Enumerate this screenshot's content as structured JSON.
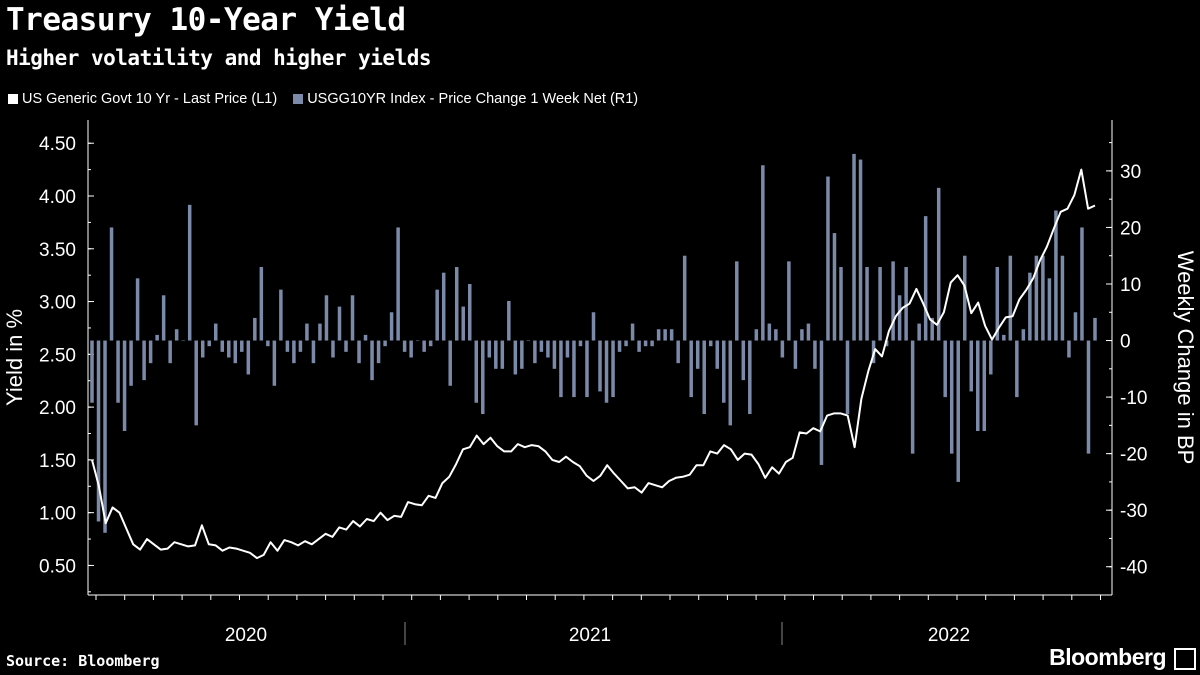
{
  "title": "Treasury 10-Year Yield",
  "subtitle": "Higher volatility and higher yields",
  "source": "Source: Bloomberg",
  "brand": "Bloomberg",
  "colors": {
    "line": "#ffffff",
    "bar": "#7a8aa8",
    "background": "#000000"
  },
  "chart_data": {
    "type": "bar+line",
    "left_axis": {
      "label": "Yield in %",
      "range": [
        0.22,
        4.72
      ],
      "ticks": [
        "0.50",
        "1.00",
        "1.50",
        "2.00",
        "2.50",
        "3.00",
        "3.50",
        "4.00",
        "4.50"
      ]
    },
    "right_axis": {
      "label": "Weekly Change in BP",
      "range": [
        -45,
        39
      ],
      "ticks": [
        "-40",
        "-30",
        "-20",
        "-10",
        "0",
        "10",
        "20",
        "30"
      ]
    },
    "x_axis": {
      "labels": [
        "2020",
        "2021",
        "2022"
      ]
    },
    "series": [
      {
        "name": "US Generic Govt 10 Yr - Last Price (L1)",
        "type": "line",
        "axis": "left",
        "values": [
          1.5,
          1.25,
          0.9,
          1.05,
          1.0,
          0.85,
          0.7,
          0.65,
          0.75,
          0.7,
          0.65,
          0.66,
          0.72,
          0.7,
          0.68,
          0.69,
          0.88,
          0.7,
          0.69,
          0.64,
          0.67,
          0.66,
          0.64,
          0.62,
          0.57,
          0.6,
          0.72,
          0.64,
          0.74,
          0.72,
          0.69,
          0.73,
          0.7,
          0.75,
          0.8,
          0.77,
          0.86,
          0.84,
          0.92,
          0.87,
          0.94,
          0.92,
          1.0,
          0.93,
          0.97,
          0.96,
          1.1,
          1.08,
          1.07,
          1.16,
          1.14,
          1.28,
          1.34,
          1.46,
          1.6,
          1.62,
          1.73,
          1.65,
          1.71,
          1.63,
          1.58,
          1.58,
          1.65,
          1.62,
          1.64,
          1.63,
          1.58,
          1.5,
          1.48,
          1.53,
          1.48,
          1.44,
          1.35,
          1.3,
          1.35,
          1.45,
          1.37,
          1.3,
          1.23,
          1.24,
          1.19,
          1.28,
          1.26,
          1.24,
          1.3,
          1.33,
          1.34,
          1.36,
          1.45,
          1.45,
          1.58,
          1.56,
          1.64,
          1.6,
          1.5,
          1.56,
          1.55,
          1.46,
          1.33,
          1.43,
          1.37,
          1.48,
          1.52,
          1.76,
          1.75,
          1.8,
          1.77,
          1.92,
          1.94,
          1.94,
          1.92,
          1.62,
          2.08,
          2.34,
          2.55,
          2.48,
          2.72,
          2.86,
          2.94,
          2.98,
          3.12,
          2.98,
          2.83,
          2.78,
          2.9,
          3.18,
          3.25,
          3.15,
          2.89,
          2.99,
          2.77,
          2.64,
          2.75,
          2.85,
          2.86,
          3.02,
          3.11,
          3.22,
          3.39,
          3.52,
          3.69,
          3.85,
          3.88,
          4.01,
          4.25,
          3.88,
          3.91
        ]
      },
      {
        "name": "USGG10YR Index - Price Change 1 Week Net (R1)",
        "type": "bar",
        "axis": "right",
        "values": [
          -11,
          -32,
          -34,
          20,
          -11,
          -16,
          -8,
          11,
          -7,
          -4,
          1,
          8,
          -4,
          2,
          0,
          24,
          -15,
          -3,
          -1,
          3,
          -2,
          -3,
          -4,
          -2,
          -6,
          4,
          13,
          -1,
          -8,
          9,
          -2,
          -4,
          -2,
          3,
          -4,
          3,
          8,
          -3,
          6,
          -2,
          8,
          -4,
          1,
          -7,
          -4,
          -1,
          5,
          20,
          -2,
          -3,
          0,
          -2,
          -1,
          9,
          12,
          -8,
          13,
          6,
          10,
          -11,
          -13,
          -3,
          -5,
          -5,
          7,
          -6,
          -5,
          0,
          -4,
          -2,
          -3,
          -5,
          -10,
          -3,
          -10,
          -1,
          -10,
          5,
          -9,
          -11,
          -10,
          -2,
          -1,
          3,
          -2,
          -1,
          -1,
          2,
          2,
          2,
          -4,
          15,
          -10,
          -5,
          -13,
          -1,
          -5,
          -11,
          -15,
          14,
          -7,
          -13,
          2,
          31,
          3,
          2,
          -3,
          14,
          -5,
          2,
          3,
          -5,
          -22,
          29,
          19,
          13,
          -13,
          33,
          32,
          13,
          -4,
          13,
          -1,
          14,
          8,
          13,
          -20,
          3,
          22,
          4,
          27,
          -10,
          -20,
          -25,
          15,
          -9,
          -16,
          -16,
          -6,
          13,
          1,
          15,
          -10,
          2,
          12,
          15,
          15,
          11,
          23,
          15,
          -3,
          5,
          20,
          -20,
          4
        ]
      }
    ]
  }
}
